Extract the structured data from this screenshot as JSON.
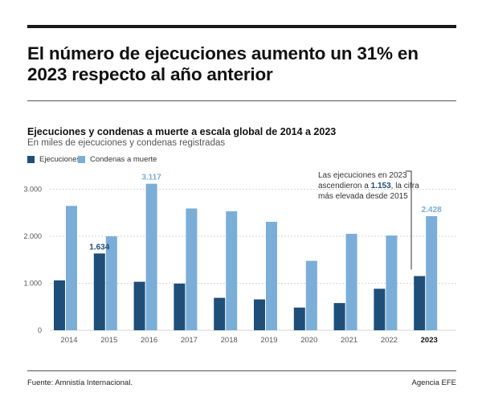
{
  "headline": "El número de ejecuciones aumento un 31% en 2023 respecto al año anterior",
  "footer": {
    "source": "Fuente: Amnistía Internacional.",
    "agency": "Agencia EFE"
  },
  "colors": {
    "ejecuciones": "#1f4e79",
    "condenas": "#7aaed8",
    "grid": "#d6d6d6"
  },
  "chart_data": {
    "type": "bar",
    "title": "Ejecuciones y condenas a muerte a escala global de 2014 a 2023",
    "subtitle": "En miles de ejecuciones y condenas registradas",
    "categories": [
      "2014",
      "2015",
      "2016",
      "2017",
      "2018",
      "2019",
      "2020",
      "2021",
      "2022",
      "2023"
    ],
    "series": [
      {
        "name": "Ejecuciones",
        "values": [
          1061,
          1634,
          1032,
          993,
          690,
          657,
          483,
          579,
          883,
          1153
        ]
      },
      {
        "name": "Condenas a muerte",
        "values": [
          2646,
          1998,
          3117,
          2591,
          2531,
          2307,
          1477,
          2052,
          2016,
          2428
        ]
      }
    ],
    "ylim": [
      0,
      3300
    ],
    "yticks": [
      0,
      1000,
      2000,
      3000
    ],
    "ytick_labels": [
      "0",
      "1.000",
      "2.000",
      "3.000"
    ],
    "grid": true,
    "legend": "top-left",
    "data_labels": [
      {
        "series": 0,
        "index": 1,
        "text": "1.634"
      },
      {
        "series": 1,
        "index": 2,
        "text": "3.117"
      },
      {
        "series": 1,
        "index": 9,
        "text": "2.428"
      }
    ],
    "annotation": {
      "lines": [
        [
          "Las ejecuciones en 2023"
        ],
        [
          "ascendieron a ",
          "1.153",
          ", la cifra"
        ],
        [
          "más elevada desde 2015"
        ]
      ]
    },
    "bold_category": "2023"
  }
}
